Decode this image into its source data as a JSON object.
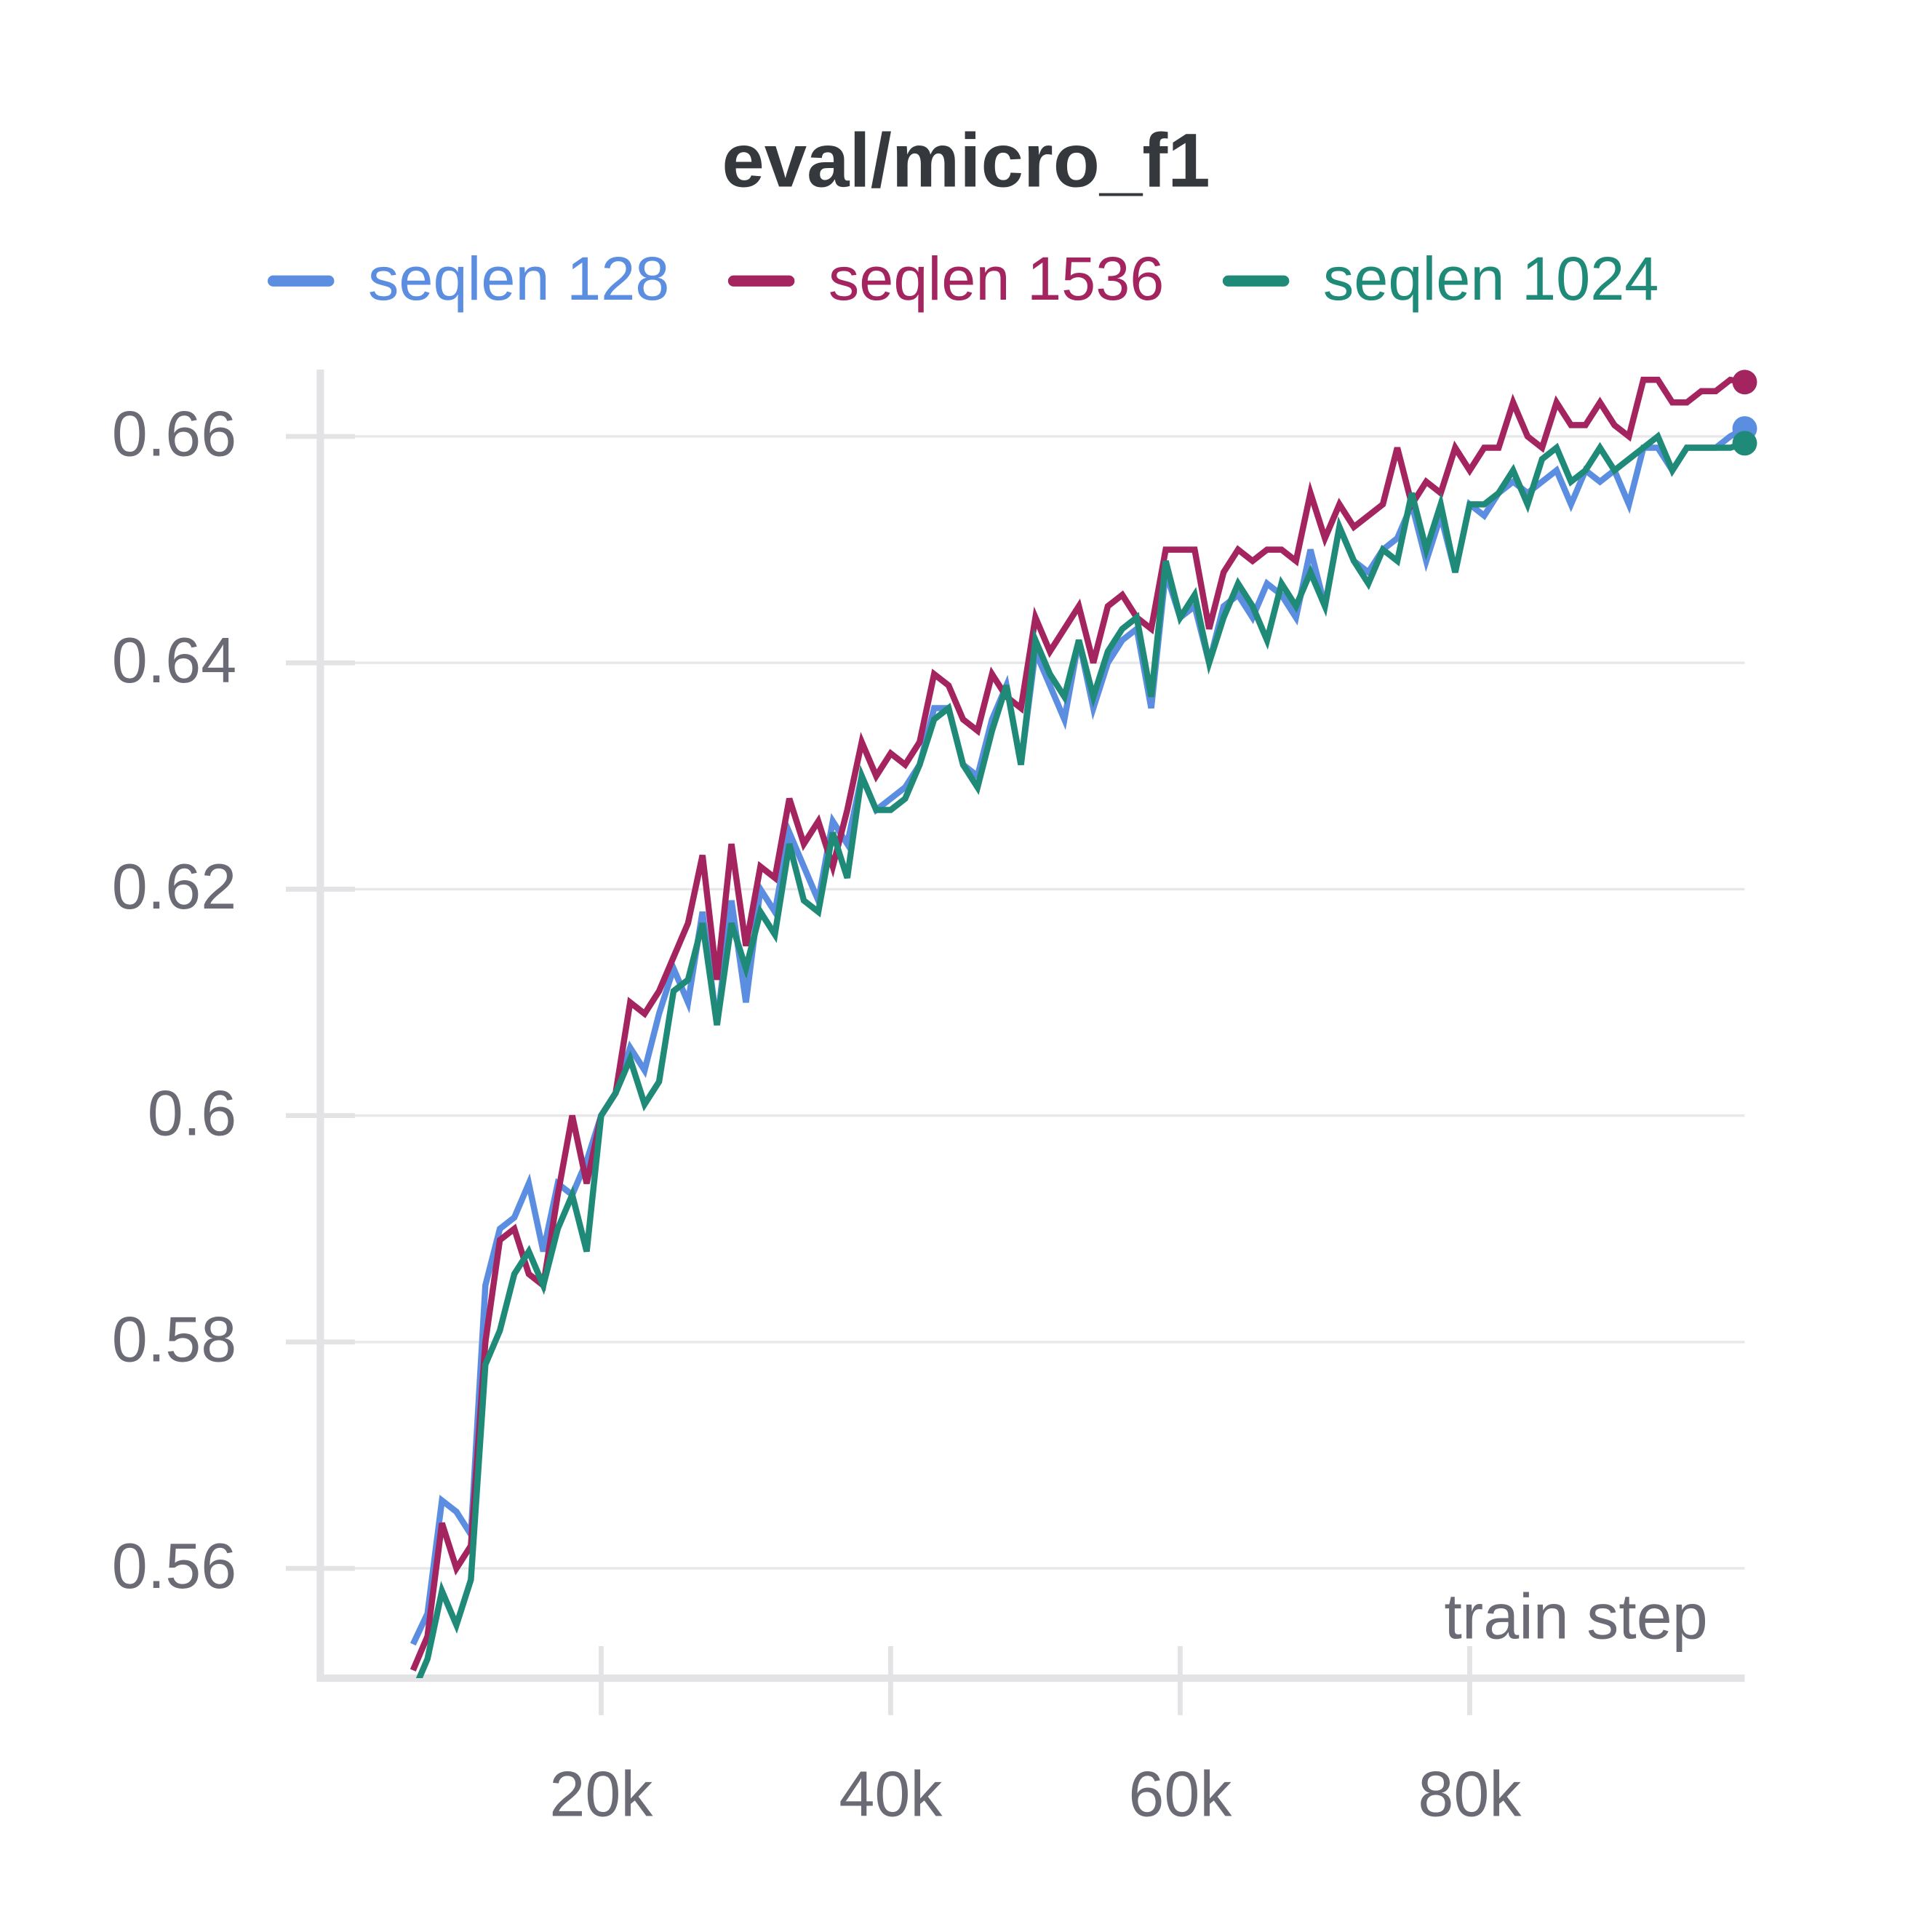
{
  "chart_data": {
    "type": "line",
    "title": "eval/micro_f1",
    "xlabel": "train step",
    "x": [
      7000,
      8000,
      9000,
      10000,
      11000,
      12000,
      13000,
      14000,
      15000,
      16000,
      17000,
      18000,
      19000,
      20000,
      21000,
      22000,
      23000,
      24000,
      25000,
      26000,
      27000,
      28000,
      29000,
      30000,
      31000,
      32000,
      33000,
      34000,
      35000,
      36000,
      37000,
      38000,
      39000,
      40000,
      41000,
      42000,
      43000,
      44000,
      45000,
      46000,
      47000,
      48000,
      49000,
      50000,
      51000,
      52000,
      53000,
      54000,
      55000,
      56000,
      57000,
      58000,
      59000,
      60000,
      61000,
      62000,
      63000,
      64000,
      65000,
      66000,
      67000,
      68000,
      69000,
      70000,
      71000,
      72000,
      73000,
      74000,
      75000,
      76000,
      77000,
      78000,
      79000,
      80000,
      81000,
      82000,
      83000,
      84000,
      85000,
      86000,
      87000,
      88000,
      89000,
      90000,
      91000,
      92000,
      93000,
      94000,
      95000,
      96000,
      97000,
      98000,
      99000
    ],
    "series": [
      {
        "name": "seqlen 128",
        "color": "#5b8ee0",
        "values": [
          0.5533,
          0.556,
          0.566,
          0.565,
          0.563,
          0.585,
          0.59,
          0.591,
          0.594,
          0.588,
          0.594,
          0.593,
          0.596,
          0.6,
          0.602,
          0.606,
          0.604,
          0.609,
          0.613,
          0.61,
          0.618,
          0.608,
          0.619,
          0.61,
          0.62,
          0.618,
          0.625,
          0.622,
          0.619,
          0.626,
          0.624,
          0.63,
          0.627,
          0.628,
          0.629,
          0.631,
          0.636,
          0.636,
          0.631,
          0.63,
          0.635,
          0.638,
          0.631,
          0.641,
          0.638,
          0.635,
          0.642,
          0.636,
          0.64,
          0.642,
          0.643,
          0.636,
          0.648,
          0.644,
          0.645,
          0.64,
          0.645,
          0.646,
          0.644,
          0.647,
          0.646,
          0.644,
          0.65,
          0.645,
          0.652,
          0.649,
          0.648,
          0.65,
          0.651,
          0.654,
          0.649,
          0.653,
          0.648,
          0.654,
          0.653,
          0.655,
          0.656,
          0.655,
          0.656,
          0.657,
          0.654,
          0.657,
          0.656,
          0.657,
          0.654,
          0.659,
          0.659,
          0.657,
          0.659,
          0.659,
          0.659,
          0.66,
          0.6607
        ]
      },
      {
        "name": "seqlen 1536",
        "color": "#a3245e",
        "values": [
          0.551,
          0.554,
          0.564,
          0.56,
          0.562,
          0.58,
          0.589,
          0.59,
          0.586,
          0.585,
          0.593,
          0.6,
          0.594,
          0.6,
          0.602,
          0.61,
          0.609,
          0.611,
          0.614,
          0.617,
          0.623,
          0.612,
          0.624,
          0.615,
          0.622,
          0.621,
          0.628,
          0.624,
          0.626,
          0.622,
          0.627,
          0.633,
          0.63,
          0.632,
          0.631,
          0.633,
          0.639,
          0.638,
          0.635,
          0.634,
          0.639,
          0.637,
          0.636,
          0.644,
          0.641,
          0.643,
          0.645,
          0.64,
          0.645,
          0.646,
          0.644,
          0.643,
          0.65,
          0.65,
          0.65,
          0.643,
          0.648,
          0.65,
          0.649,
          0.65,
          0.65,
          0.649,
          0.655,
          0.651,
          0.654,
          0.652,
          0.653,
          0.654,
          0.659,
          0.654,
          0.656,
          0.655,
          0.659,
          0.657,
          0.659,
          0.659,
          0.663,
          0.66,
          0.659,
          0.663,
          0.661,
          0.661,
          0.663,
          0.661,
          0.66,
          0.665,
          0.665,
          0.663,
          0.663,
          0.664,
          0.664,
          0.665,
          0.6648
        ]
      },
      {
        "name": "seqlen 1024",
        "color": "#1f8a78",
        "values": [
          0.549,
          0.552,
          0.558,
          0.555,
          0.559,
          0.578,
          0.581,
          0.586,
          0.588,
          0.585,
          0.59,
          0.593,
          0.588,
          0.6,
          0.602,
          0.605,
          0.601,
          0.603,
          0.611,
          0.612,
          0.617,
          0.608,
          0.617,
          0.613,
          0.618,
          0.616,
          0.624,
          0.619,
          0.618,
          0.625,
          0.621,
          0.63,
          0.627,
          0.627,
          0.628,
          0.631,
          0.635,
          0.636,
          0.631,
          0.629,
          0.634,
          0.638,
          0.631,
          0.642,
          0.639,
          0.637,
          0.642,
          0.637,
          0.641,
          0.643,
          0.644,
          0.637,
          0.649,
          0.644,
          0.646,
          0.64,
          0.644,
          0.647,
          0.645,
          0.642,
          0.647,
          0.645,
          0.648,
          0.645,
          0.652,
          0.649,
          0.647,
          0.65,
          0.649,
          0.655,
          0.65,
          0.654,
          0.648,
          0.654,
          0.654,
          0.655,
          0.657,
          0.654,
          0.658,
          0.659,
          0.656,
          0.657,
          0.659,
          0.657,
          0.658,
          0.659,
          0.66,
          0.657,
          0.659,
          0.659,
          0.659,
          0.659,
          0.6594
        ]
      }
    ],
    "xlim": [
      600,
      99000
    ],
    "ylim": [
      0.5503,
      0.6659
    ],
    "xticks": [
      {
        "value": 20000,
        "label": "20k"
      },
      {
        "value": 40000,
        "label": "40k"
      },
      {
        "value": 60000,
        "label": "60k"
      },
      {
        "value": 80000,
        "label": "80k"
      }
    ],
    "yticks": [
      0.56,
      0.58,
      0.6,
      0.62,
      0.64,
      0.66
    ],
    "grid": true
  }
}
